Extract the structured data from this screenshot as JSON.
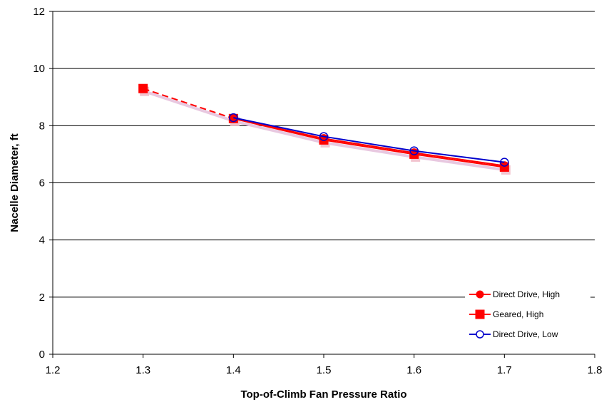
{
  "chart_data": {
    "type": "line",
    "xlabel": "Top-of-Climb Fan Pressure Ratio",
    "ylabel": "Nacelle Diameter, ft",
    "xlim": [
      1.2,
      1.8
    ],
    "ylim": [
      0,
      12
    ],
    "xticks": [
      "1.2",
      "1.3",
      "1.4",
      "1.5",
      "1.6",
      "1.7",
      "1.8"
    ],
    "yticks": [
      "0",
      "2",
      "4",
      "6",
      "8",
      "10",
      "12"
    ],
    "grid": "horizontal",
    "legend_position": "bottom-right",
    "series": [
      {
        "name": "Direct Drive, High",
        "color": "#ff0000",
        "marker": "circle-filled",
        "x": [
          1.4,
          1.5,
          1.6,
          1.7
        ],
        "y": [
          8.25,
          7.55,
          7.05,
          6.6
        ]
      },
      {
        "name": "Geared, High",
        "color": "#ff0000",
        "marker": "square-filled",
        "dash_segment": [
          1.3,
          1.4
        ],
        "x": [
          1.3,
          1.4,
          1.5,
          1.6,
          1.7
        ],
        "y": [
          9.3,
          8.25,
          7.5,
          7.0,
          6.55
        ]
      },
      {
        "name": "Direct Drive, Low",
        "color": "#0000cc",
        "marker": "circle-open",
        "x": [
          1.4,
          1.5,
          1.6,
          1.7
        ],
        "y": [
          8.28,
          7.62,
          7.12,
          6.72
        ]
      }
    ]
  }
}
